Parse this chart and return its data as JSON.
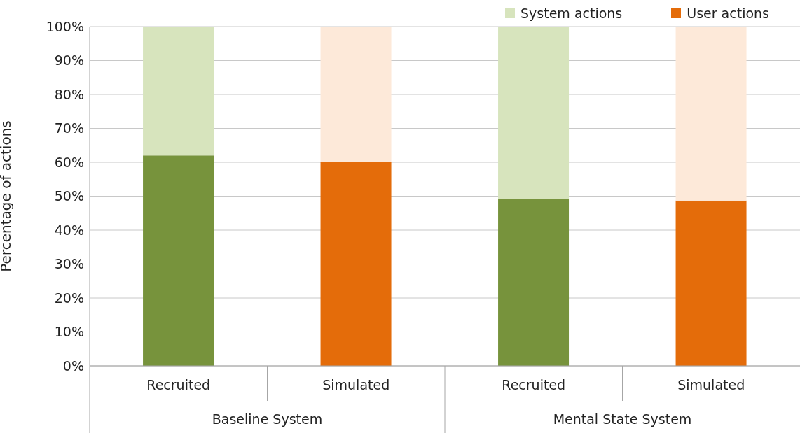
{
  "chart_data": {
    "type": "bar",
    "stacked": true,
    "categories": [
      "Recruited",
      "Simulated",
      "Recruited",
      "Simulated"
    ],
    "series": [
      {
        "name": "User actions",
        "color": "#e46c0a",
        "colors": [
          "#77933c",
          "#e46c0a",
          "#77933c",
          "#e46c0a"
        ],
        "values": [
          62,
          60,
          49.3,
          48.7
        ]
      },
      {
        "name": "System actions",
        "color": "#d7e4bd",
        "colors": [
          "#d7e4bd",
          "#fde9d9",
          "#d7e4bd",
          "#fde9d9"
        ],
        "values": [
          38,
          40,
          50.7,
          51.3
        ]
      }
    ],
    "ylabel": "Percentage of actions",
    "ylim": [
      0,
      100
    ],
    "yticks": [
      {
        "value": 0,
        "label": "0%"
      },
      {
        "value": 10,
        "label": "10%"
      },
      {
        "value": 20,
        "label": "20%"
      },
      {
        "value": 30,
        "label": "30%"
      },
      {
        "value": 40,
        "label": "40%"
      },
      {
        "value": 50,
        "label": "50%"
      },
      {
        "value": 60,
        "label": "60%"
      },
      {
        "value": 70,
        "label": "70%"
      },
      {
        "value": 80,
        "label": "80%"
      },
      {
        "value": 90,
        "label": "90%"
      },
      {
        "value": 100,
        "label": "100%"
      }
    ],
    "annotations": [
      "Baseline System",
      "Mental State System"
    ],
    "grid": "y",
    "legend": "top right"
  }
}
